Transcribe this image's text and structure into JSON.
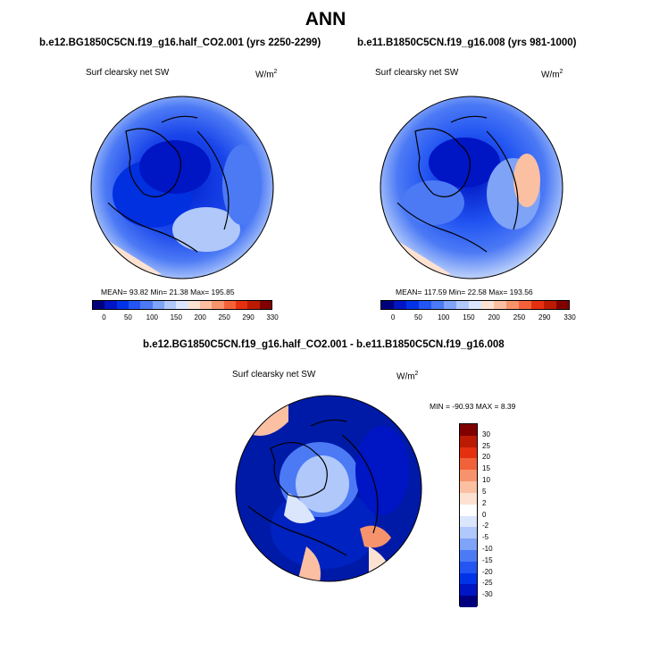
{
  "title": "ANN",
  "panel_left": {
    "case": "b.e12.BG1850C5CN.f19_g16.half_CO2.001 (yrs 2250-2299)",
    "variable": "Surf clearsky net SW",
    "units_base": "W/m",
    "units_exp": "2",
    "stats": "MEAN=  93.82  Min=  21.38  Max=  195.85"
  },
  "panel_right": {
    "case": "b.e11.B1850C5CN.f19_g16.008 (yrs 981-1000)",
    "variable": "Surf clearsky net SW",
    "units_base": "W/m",
    "units_exp": "2",
    "stats": "MEAN=  117.59  Min=  22.58  Max=  193.56"
  },
  "panel_diff": {
    "case": "b.e12.BG1850C5CN.f19_g16.half_CO2.001 - b.e11.B1850C5CN.f19_g16.008",
    "variable": "Surf clearsky net SW",
    "units_base": "W/m",
    "units_exp": "2",
    "stats": "MIN = -90.93 MAX =   8.39"
  },
  "colorbar_abs": {
    "labels": [
      "0",
      "50",
      "100",
      "150",
      "200",
      "250",
      "290",
      "330"
    ],
    "colors": [
      "#00007f",
      "#0015c4",
      "#0033e8",
      "#2255f2",
      "#4c7af5",
      "#7ea3f7",
      "#b0c8fa",
      "#dbe6fc",
      "#fde2d2",
      "#fbbfa2",
      "#f7936c",
      "#f2623a",
      "#e5300f",
      "#bb1b02",
      "#800000"
    ]
  },
  "colorbar_diff": {
    "labels": [
      "30",
      "25",
      "20",
      "15",
      "10",
      "5",
      "2",
      "0",
      "-2",
      "-5",
      "-10",
      "-15",
      "-20",
      "-25",
      "-30"
    ],
    "colors": [
      "#800000",
      "#bb1b02",
      "#e5300f",
      "#f2623a",
      "#f7936c",
      "#fbbfa2",
      "#fde2d2",
      "#ffffff",
      "#dbe6fc",
      "#b0c8fa",
      "#7ea3f7",
      "#4c7af5",
      "#2255f2",
      "#0033e8",
      "#0015c4",
      "#00007f"
    ]
  }
}
